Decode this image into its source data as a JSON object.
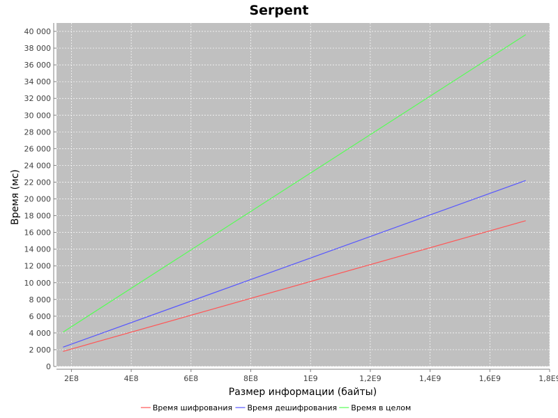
{
  "chart_data": {
    "type": "line",
    "title": "Serpent",
    "xlabel": "Размер информации (байты)",
    "ylabel": "Время (мс)",
    "xlim": [
      150000000,
      1800000000
    ],
    "ylim": [
      0,
      41000
    ],
    "x_ticks": [
      {
        "value": 200000000,
        "label": "2E8"
      },
      {
        "value": 400000000,
        "label": "4E8"
      },
      {
        "value": 600000000,
        "label": "6E8"
      },
      {
        "value": 800000000,
        "label": "8E8"
      },
      {
        "value": 1000000000,
        "label": "1E9"
      },
      {
        "value": 1200000000,
        "label": "1,2E9"
      },
      {
        "value": 1400000000,
        "label": "1,4E9"
      },
      {
        "value": 1600000000,
        "label": "1,6E9"
      },
      {
        "value": 1800000000,
        "label": "1,8E9"
      }
    ],
    "y_ticks": [
      {
        "value": 0,
        "label": "0"
      },
      {
        "value": 2000,
        "label": "2 000"
      },
      {
        "value": 4000,
        "label": "4 000"
      },
      {
        "value": 6000,
        "label": "6 000"
      },
      {
        "value": 8000,
        "label": "8 000"
      },
      {
        "value": 10000,
        "label": "10 000"
      },
      {
        "value": 12000,
        "label": "12 000"
      },
      {
        "value": 14000,
        "label": "14 000"
      },
      {
        "value": 16000,
        "label": "16 000"
      },
      {
        "value": 18000,
        "label": "18 000"
      },
      {
        "value": 20000,
        "label": "20 000"
      },
      {
        "value": 22000,
        "label": "22 000"
      },
      {
        "value": 24000,
        "label": "24 000"
      },
      {
        "value": 26000,
        "label": "26 000"
      },
      {
        "value": 28000,
        "label": "28 000"
      },
      {
        "value": 30000,
        "label": "30 000"
      },
      {
        "value": 32000,
        "label": "32 000"
      },
      {
        "value": 34000,
        "label": "34 000"
      },
      {
        "value": 36000,
        "label": "36 000"
      },
      {
        "value": 38000,
        "label": "38 000"
      },
      {
        "value": 40000,
        "label": "40 000"
      }
    ],
    "grid": true,
    "legend_position": "bottom",
    "plot_background": "#c0c0c0",
    "series": [
      {
        "name": "Время шифрования",
        "color": "#ff5555",
        "points": [
          [
            172000000,
            1800
          ],
          [
            1720000000,
            17400
          ]
        ]
      },
      {
        "name": "Время дешифрования",
        "color": "#5555ff",
        "points": [
          [
            172000000,
            2300
          ],
          [
            1720000000,
            22200
          ]
        ]
      },
      {
        "name": "Время в целом",
        "color": "#55ff55",
        "points": [
          [
            172000000,
            4100
          ],
          [
            1720000000,
            39600
          ]
        ]
      }
    ]
  }
}
